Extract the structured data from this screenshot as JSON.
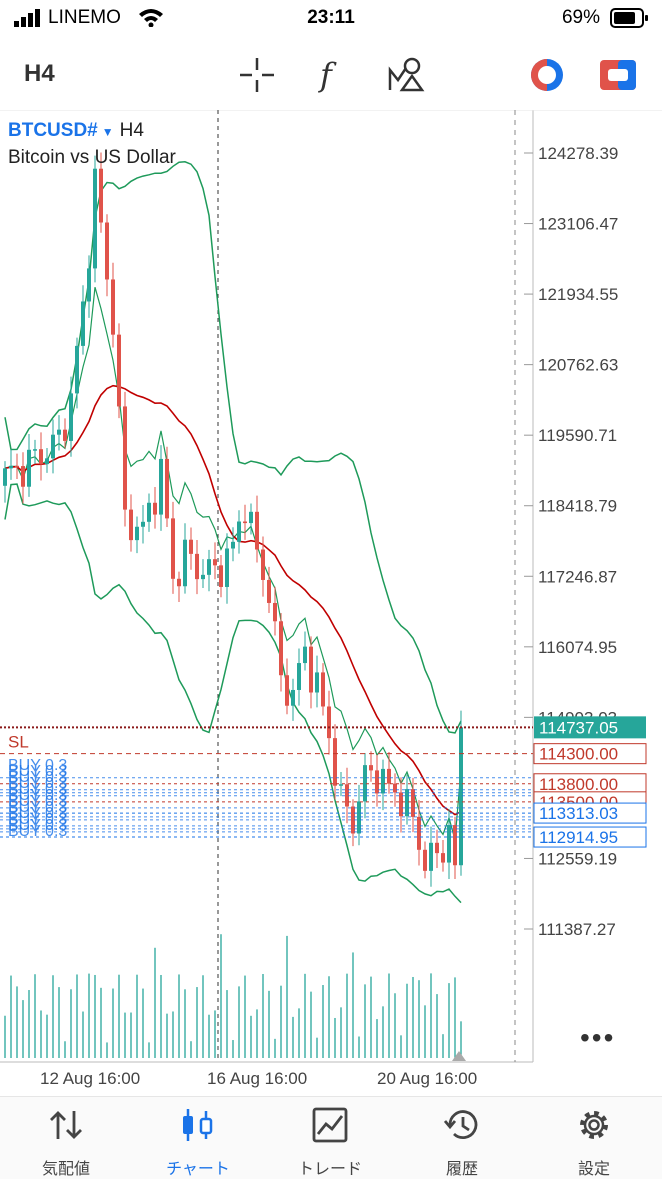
{
  "status_bar": {
    "carrier": "LINEMO",
    "time": "23:11",
    "battery": "69%"
  },
  "toolbar": {
    "timeframe": "H4",
    "icons": [
      "crosshair-icon",
      "function-icon",
      "objects-icon",
      "account-icon",
      "trade-icon"
    ]
  },
  "chart": {
    "symbol": "BTCUSD#",
    "timeframe": "H4",
    "description": "Bitcoin vs US Dollar",
    "price_labels": [
      "124278.39",
      "123106.47",
      "121934.55",
      "120762.63",
      "119590.71",
      "118418.79",
      "117246.87",
      "116074.95",
      "114903.03",
      "112559.19",
      "111387.27"
    ],
    "current_price": "114737.05",
    "level_labels": [
      {
        "text": "114300.00",
        "color": "#c0392b"
      },
      {
        "text": "113800.00",
        "color": "#c0392b"
      },
      {
        "text": "113500.00",
        "color": "#c0392b"
      },
      {
        "text": "113313.03",
        "color": "#1a73e8"
      },
      {
        "text": "112914.95",
        "color": "#1a73e8"
      }
    ],
    "sl_label": "SL",
    "order_labels": [
      "BUY 0.3",
      "BUY 0.3",
      "BUY 0.3",
      "BUY 0.3",
      "BUY 0.3",
      "BUY 0.3",
      "BUY 0.3",
      "BUY 0.3",
      "BUY 0.3",
      "BUY 0.3",
      "BUY 0.3",
      "BUY 0.3"
    ],
    "date_labels": [
      "12 Aug 16:00",
      "16 Aug 16:00",
      "20 Aug 16:00"
    ],
    "more": "•••",
    "colors": {
      "bull": "#26a69a",
      "bear": "#e0534a",
      "bands": "#1e9a5a",
      "ma": "#c00000",
      "current": "#26a69a"
    }
  },
  "tabs": [
    {
      "label": "気配値",
      "icon": "quotes-icon"
    },
    {
      "label": "チャート",
      "icon": "chart-icon",
      "active": true
    },
    {
      "label": "トレード",
      "icon": "trade-tab-icon"
    },
    {
      "label": "履歴",
      "icon": "history-icon"
    },
    {
      "label": "設定",
      "icon": "settings-icon"
    }
  ]
}
